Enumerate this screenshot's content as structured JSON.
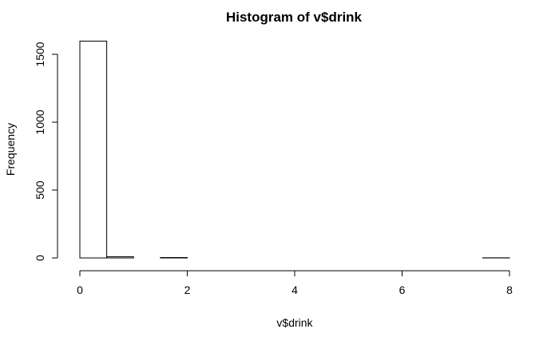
{
  "chart_data": {
    "type": "bar",
    "title": "Histogram of v$drink",
    "xlabel": "v$drink",
    "ylabel": "Frequency",
    "x_ticks": [
      0,
      2,
      4,
      6,
      8
    ],
    "y_ticks": [
      0,
      500,
      1000,
      1500
    ],
    "xlim": [
      0,
      8
    ],
    "ylim": [
      0,
      1600
    ],
    "bins": [
      {
        "x0": 0.0,
        "x1": 0.5,
        "count": 1597
      },
      {
        "x0": 0.5,
        "x1": 1.0,
        "count": 9
      },
      {
        "x0": 1.0,
        "x1": 1.5,
        "count": 0
      },
      {
        "x0": 1.5,
        "x1": 2.0,
        "count": 3
      },
      {
        "x0": 2.0,
        "x1": 2.5,
        "count": 0
      },
      {
        "x0": 2.5,
        "x1": 3.0,
        "count": 0
      },
      {
        "x0": 3.0,
        "x1": 3.5,
        "count": 0
      },
      {
        "x0": 3.5,
        "x1": 4.0,
        "count": 0
      },
      {
        "x0": 4.0,
        "x1": 4.5,
        "count": 0
      },
      {
        "x0": 4.5,
        "x1": 5.0,
        "count": 0
      },
      {
        "x0": 5.0,
        "x1": 5.5,
        "count": 0
      },
      {
        "x0": 5.5,
        "x1": 6.0,
        "count": 0
      },
      {
        "x0": 6.0,
        "x1": 6.5,
        "count": 0
      },
      {
        "x0": 6.5,
        "x1": 7.0,
        "count": 0
      },
      {
        "x0": 7.0,
        "x1": 7.5,
        "count": 0
      },
      {
        "x0": 7.5,
        "x1": 8.0,
        "count": 1
      }
    ],
    "grid": false,
    "legend": "none"
  }
}
